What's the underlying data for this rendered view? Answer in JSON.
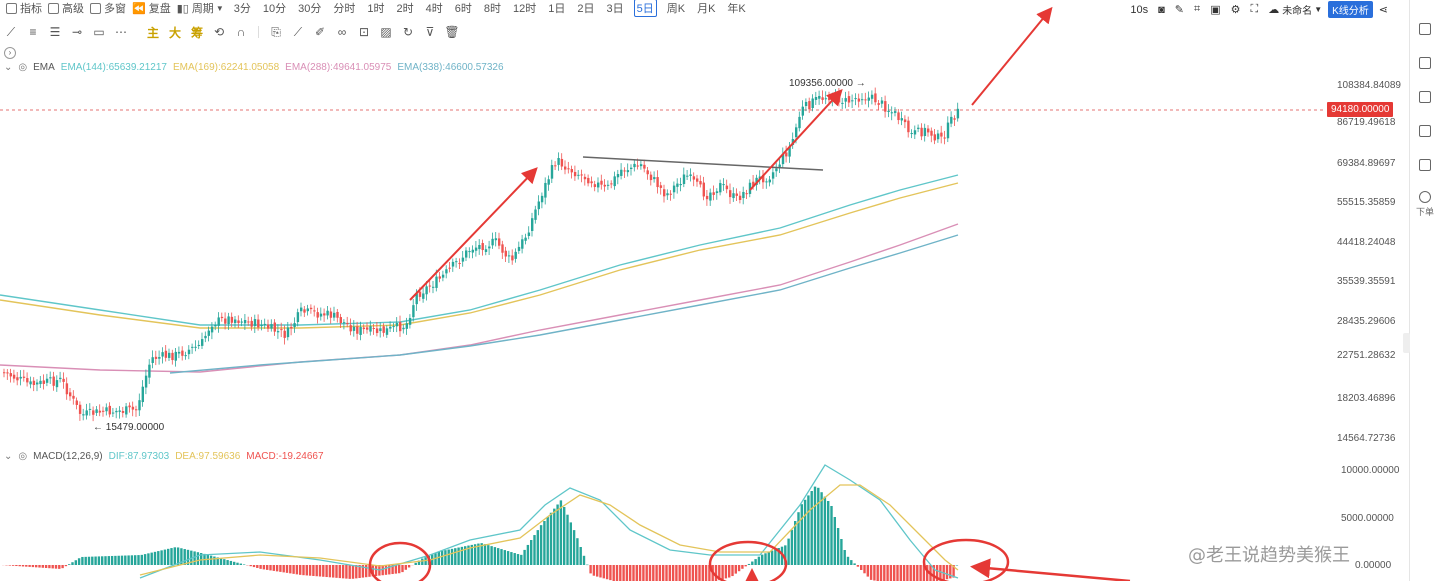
{
  "topbar": {
    "indicator_label": "指标",
    "advanced_label": "高级",
    "multiwindow_label": "多窗",
    "replay_label": "复盘",
    "period_label": "周期",
    "timeframes": [
      "3分",
      "10分",
      "30分",
      "分时",
      "1时",
      "2时",
      "4时",
      "6时",
      "8时",
      "12时",
      "1日",
      "2日",
      "3日",
      "5日",
      "周K",
      "月K",
      "年K"
    ],
    "active_timeframe": "5日",
    "interval": "10s",
    "layout_name": "未命名",
    "kline_analysis_label": "K线分析"
  },
  "drawing_tools": {
    "main_label": "主",
    "big_label": "大",
    "chip_label": "筹"
  },
  "main_chart": {
    "indicator": "EMA",
    "ema": [
      {
        "label": "EMA(144):65639.21217",
        "color": "#5fc6c9"
      },
      {
        "label": "EMA(169):62241.05058",
        "color": "#e3c45a"
      },
      {
        "label": "EMA(288):49641.05975",
        "color": "#d98fb6"
      },
      {
        "label": "EMA(338):46600.57326",
        "color": "#6fb3c7"
      }
    ],
    "price_axis": [
      "108384.84089",
      "86719.49618",
      "69384.89697",
      "55515.35859",
      "44418.24048",
      "35539.35591",
      "28435.29606",
      "22751.28632",
      "18203.46896",
      "14564.72736"
    ],
    "current_price": "94180.00000",
    "high_label": "109356.00000 →",
    "low_label": "← 15479.00000"
  },
  "macd": {
    "title": "MACD(12,26,9)",
    "dif": "DIF:87.97303",
    "dea": "DEA:97.59636",
    "macd": "MACD:-19.24667",
    "axis": [
      "10000.00000",
      "5000.00000",
      "0.00000"
    ]
  },
  "sidebar": {
    "order_label": "下单"
  },
  "watermark": "@老王说趋势美猴王",
  "colors": {
    "up": "#26a69a",
    "down": "#ef5350",
    "arrow": "#e53935",
    "accent": "#2a6fdb"
  }
}
